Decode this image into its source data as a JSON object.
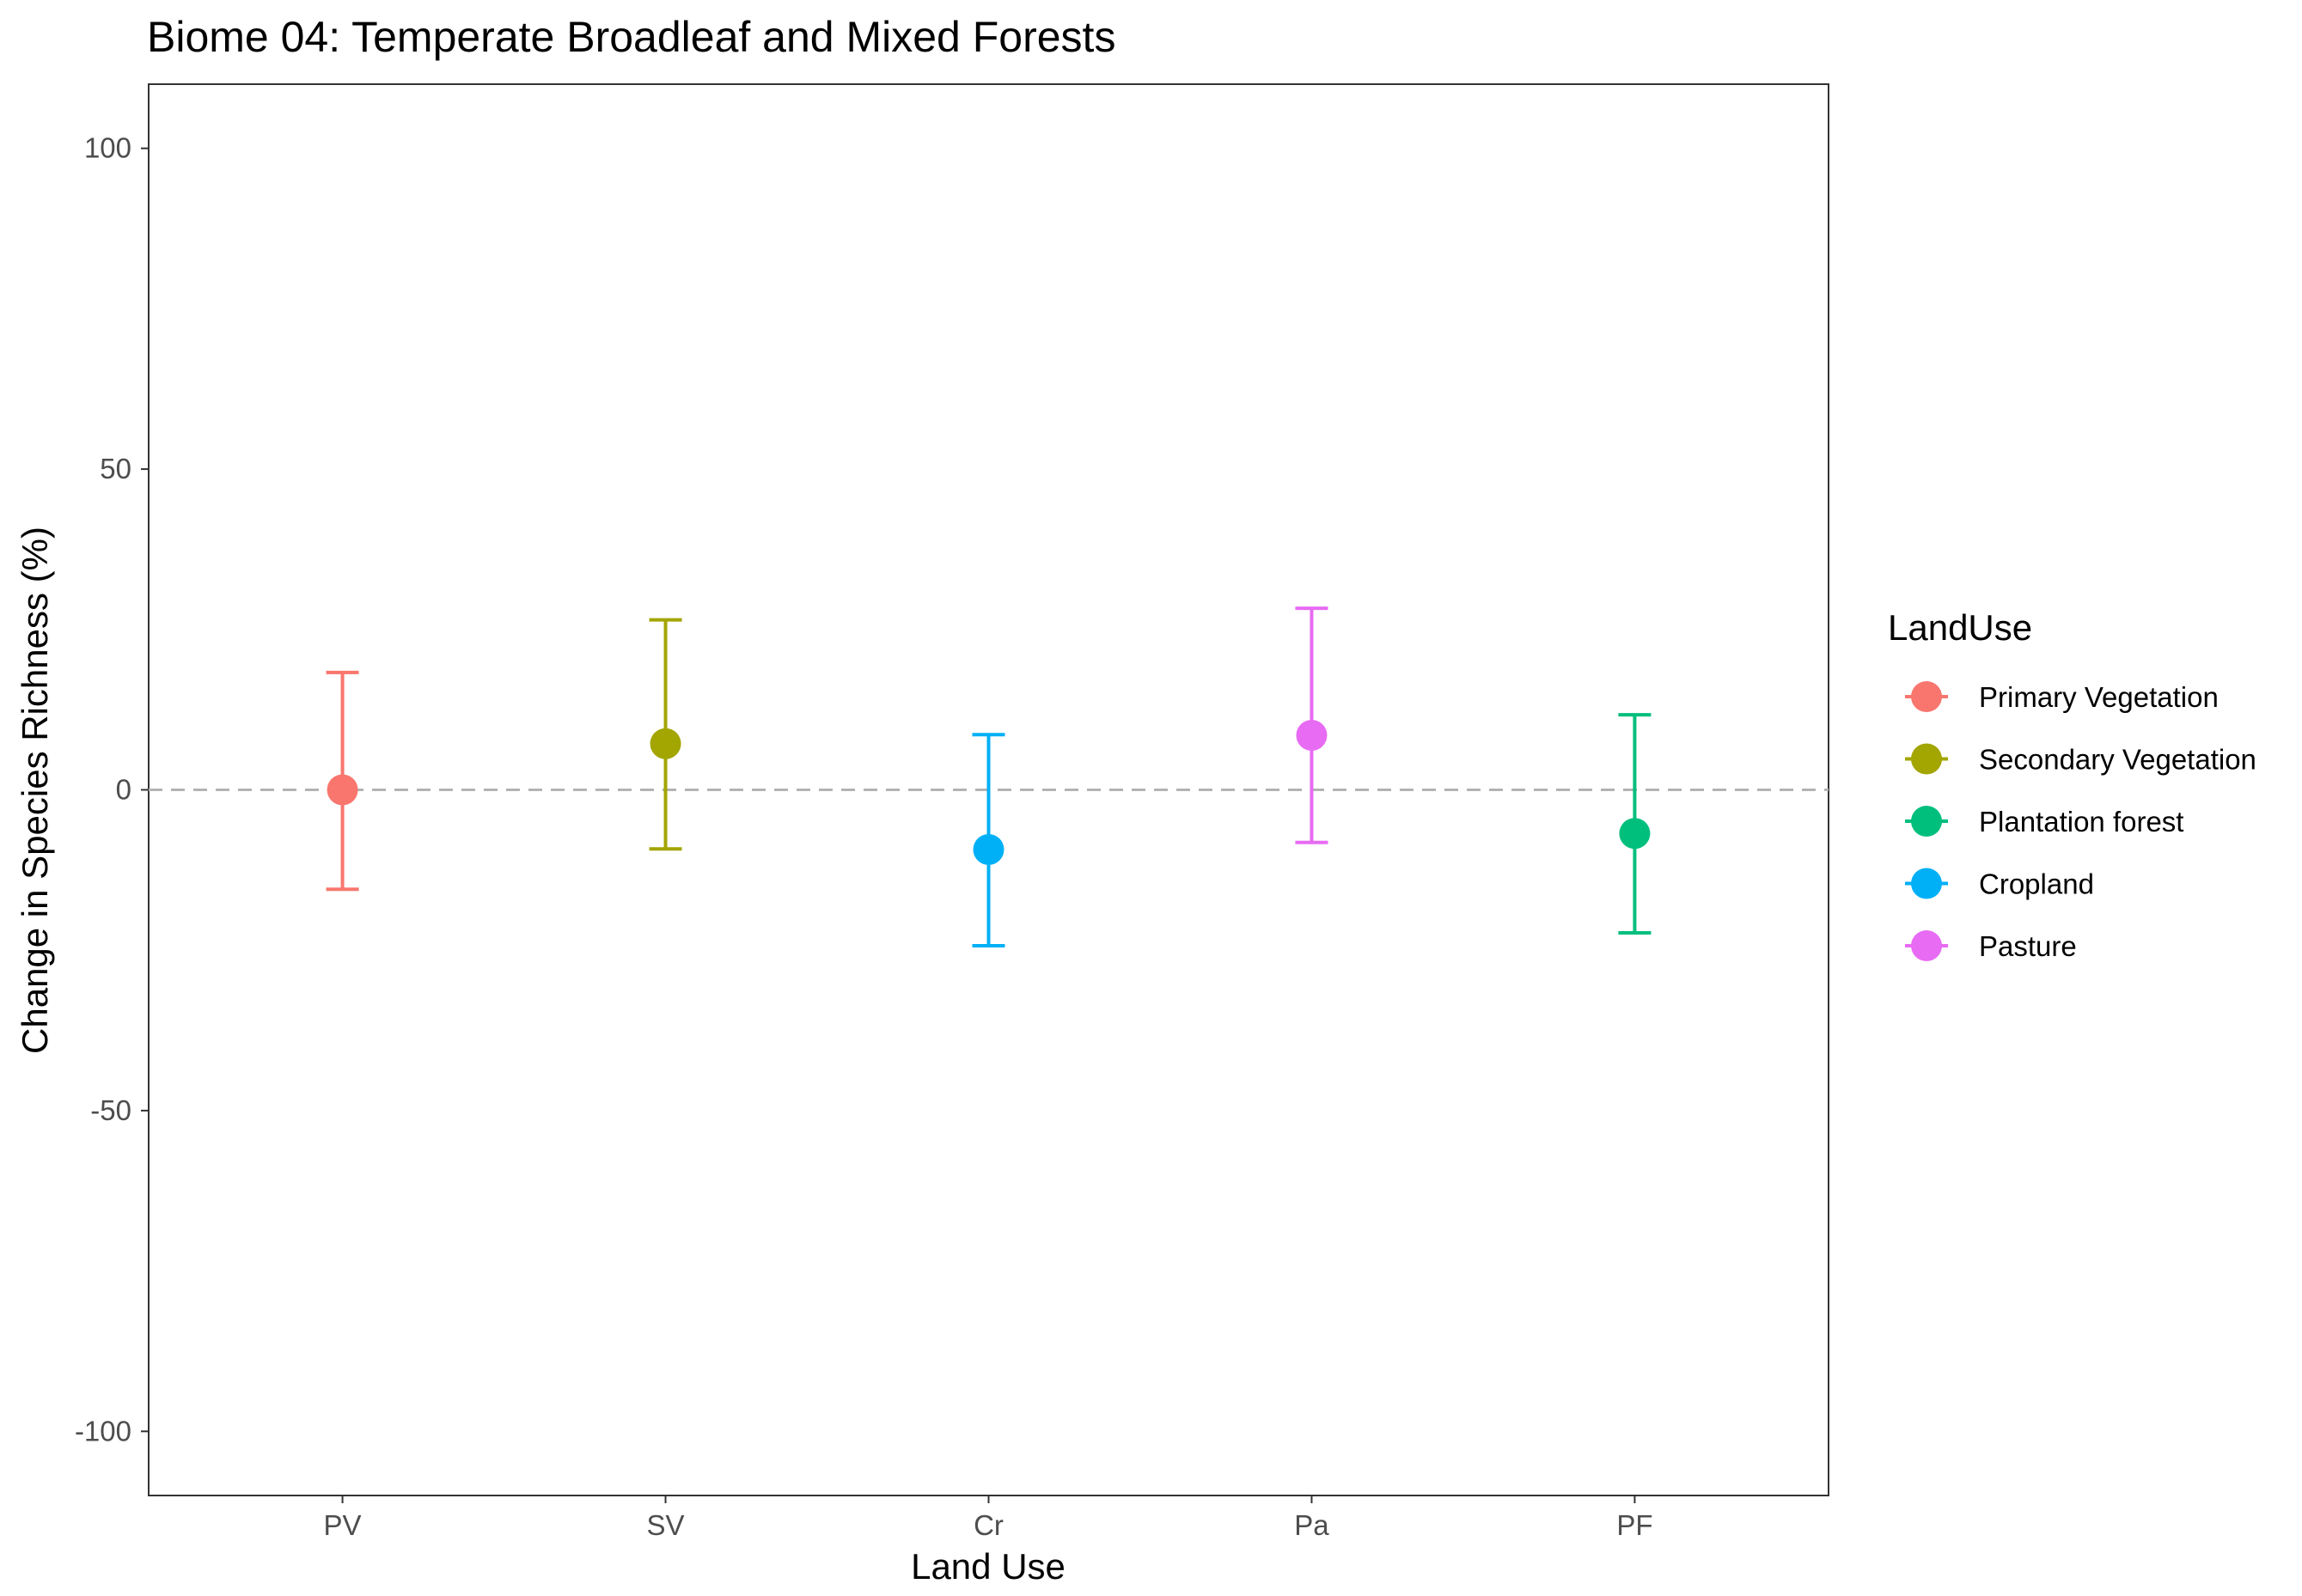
{
  "chart_data": {
    "type": "scatter",
    "title": "Biome 04: Temperate Broadleaf and Mixed Forests",
    "xlabel": "Land Use",
    "ylabel": "Change in Species Richness (%)",
    "ylim": [
      -110,
      110
    ],
    "yticks": [
      -100,
      -50,
      0,
      50,
      100
    ],
    "ytick_labels": [
      "-100",
      "-50",
      "0",
      "50",
      "100"
    ],
    "categories": [
      "PV",
      "SV",
      "Cr",
      "Pa",
      "PF"
    ],
    "reference_line": 0,
    "grid": false,
    "legend_title": "LandUse",
    "legend_position": "right",
    "series": [
      {
        "name": "Primary Vegetation",
        "category": "PV",
        "value": 0,
        "lower": -15.5,
        "upper": 18.3,
        "color": "#F8766D"
      },
      {
        "name": "Secondary Vegetation",
        "category": "SV",
        "value": 7.2,
        "lower": -9.2,
        "upper": 26.5,
        "color": "#A3A500"
      },
      {
        "name": "Plantation forest",
        "category": "PF",
        "value": -6.8,
        "lower": -22.3,
        "upper": 11.7,
        "color": "#00BF7D"
      },
      {
        "name": "Cropland",
        "category": "Cr",
        "value": -9.3,
        "lower": -24.3,
        "upper": 8.6,
        "color": "#00B0F6"
      },
      {
        "name": "Pasture",
        "category": "Pa",
        "value": 8.5,
        "lower": -8.2,
        "upper": 28.3,
        "color": "#E76BF3"
      }
    ]
  }
}
